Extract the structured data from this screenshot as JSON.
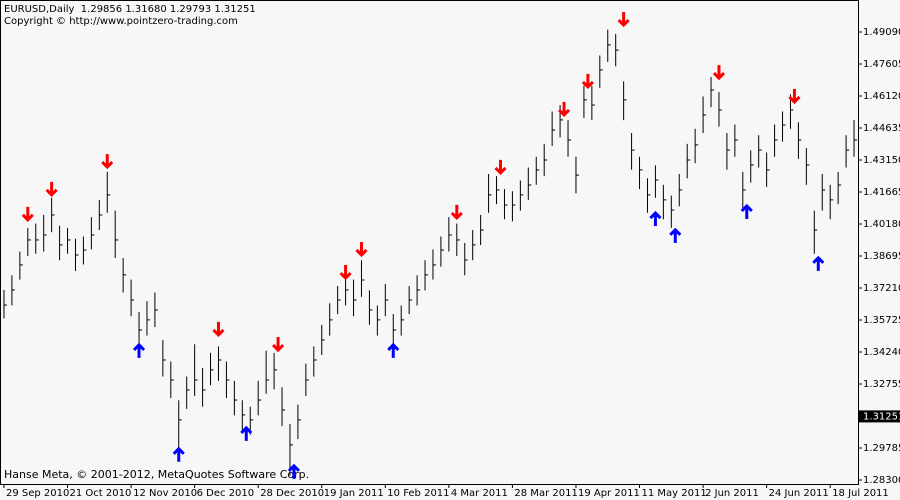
{
  "chart_data": {
    "type": "ohlc",
    "title": "EURUSD,Daily  1.29856 1.31680 1.29793 1.31251",
    "subtitle": "Copyright © http://www.pointzero-trading.com",
    "footer": "Hanse Meta, © 2001-2012, MetaQuotes Software Corp.",
    "bar_color": "#000000",
    "last_price": 1.31251,
    "x": [
      0,
      2,
      4,
      6,
      8,
      10,
      12,
      14,
      16,
      18,
      20,
      22,
      24,
      26,
      28,
      30,
      32,
      34,
      36,
      38,
      40,
      42,
      44,
      46,
      48,
      50,
      52,
      54,
      56,
      58,
      60,
      62,
      64,
      66,
      68,
      70,
      72,
      74,
      76,
      78,
      80,
      82,
      84,
      86,
      88,
      90,
      92,
      94,
      96,
      98,
      100,
      102,
      104,
      106,
      108,
      110,
      112,
      114,
      116,
      118,
      120,
      122,
      124,
      126,
      128,
      130,
      132,
      134,
      136,
      138,
      140,
      142,
      144,
      146,
      148,
      150,
      152,
      154,
      156,
      158,
      160,
      162,
      164,
      166,
      168,
      170,
      172,
      174,
      176,
      178,
      180,
      182,
      184,
      186,
      188,
      190,
      192,
      194,
      196,
      198,
      200,
      202,
      204,
      206,
      208,
      210,
      212,
      214
    ],
    "high": [
      1.3712,
      1.378,
      1.389,
      1.4,
      1.402,
      1.406,
      1.414,
      1.401,
      1.4,
      1.395,
      1.396,
      1.405,
      1.413,
      1.426,
      1.408,
      1.386,
      1.376,
      1.361,
      1.366,
      1.37,
      1.348,
      1.338,
      1.32,
      1.331,
      1.346,
      1.335,
      1.342,
      1.345,
      1.338,
      1.329,
      1.32,
      1.317,
      1.329,
      1.343,
      1.342,
      1.326,
      1.309,
      1.318,
      1.337,
      1.345,
      1.355,
      1.365,
      1.373,
      1.378,
      1.376,
      1.385,
      1.371,
      1.364,
      1.374,
      1.36,
      1.364,
      1.373,
      1.378,
      1.385,
      1.39,
      1.396,
      1.405,
      1.402,
      1.393,
      1.399,
      1.406,
      1.425,
      1.424,
      1.418,
      1.417,
      1.422,
      1.428,
      1.433,
      1.439,
      1.454,
      1.457,
      1.45,
      1.433,
      1.466,
      1.466,
      1.48,
      1.492,
      1.49,
      1.468,
      1.444,
      1.433,
      1.423,
      1.429,
      1.42,
      1.415,
      1.425,
      1.439,
      1.446,
      1.461,
      1.47,
      1.463,
      1.444,
      1.448,
      1.426,
      1.436,
      1.443,
      1.435,
      1.448,
      1.454,
      1.462,
      1.449,
      1.437,
      1.408,
      1.425,
      1.42,
      1.426,
      1.443,
      1.45
    ],
    "low": [
      1.358,
      1.364,
      1.376,
      1.387,
      1.388,
      1.389,
      1.398,
      1.385,
      1.388,
      1.38,
      1.383,
      1.39,
      1.399,
      1.407,
      1.386,
      1.37,
      1.359,
      1.344,
      1.35,
      1.354,
      1.331,
      1.321,
      1.298,
      1.316,
      1.322,
      1.317,
      1.327,
      1.329,
      1.321,
      1.313,
      1.306,
      1.304,
      1.313,
      1.323,
      1.325,
      1.308,
      1.285,
      1.302,
      1.322,
      1.331,
      1.341,
      1.35,
      1.36,
      1.364,
      1.359,
      1.368,
      1.355,
      1.35,
      1.359,
      1.344,
      1.35,
      1.36,
      1.364,
      1.371,
      1.376,
      1.382,
      1.389,
      1.387,
      1.378,
      1.385,
      1.392,
      1.407,
      1.411,
      1.404,
      1.403,
      1.408,
      1.413,
      1.42,
      1.424,
      1.438,
      1.442,
      1.433,
      1.416,
      1.451,
      1.45,
      1.465,
      1.477,
      1.475,
      1.45,
      1.427,
      1.418,
      1.407,
      1.414,
      1.404,
      1.4,
      1.41,
      1.423,
      1.43,
      1.444,
      1.456,
      1.447,
      1.427,
      1.433,
      1.409,
      1.421,
      1.428,
      1.419,
      1.433,
      1.44,
      1.446,
      1.432,
      1.42,
      1.388,
      1.408,
      1.404,
      1.411,
      1.428,
      1.433
    ],
    "close": [
      1.3642,
      1.3712,
      1.3828,
      1.3944,
      1.3944,
      1.3967,
      1.406,
      1.3921,
      1.3944,
      1.3874,
      1.3897,
      1.3967,
      1.406,
      1.4153,
      1.3944,
      1.3782,
      1.3665,
      1.3526,
      1.3573,
      1.3619,
      1.3387,
      1.3294,
      1.3109,
      1.3248,
      1.3294,
      1.3248,
      1.3341,
      1.3387,
      1.3294,
      1.3201,
      1.3132,
      1.3109,
      1.3201,
      1.3294,
      1.3341,
      1.3155,
      1.2993,
      1.3109,
      1.3294,
      1.3387,
      1.348,
      1.3573,
      1.3665,
      1.3712,
      1.3665,
      1.3758,
      1.3619,
      1.3573,
      1.3665,
      1.3526,
      1.3573,
      1.3665,
      1.3712,
      1.3782,
      1.3828,
      1.3897,
      1.3967,
      1.3944,
      1.3851,
      1.3921,
      1.399,
      1.4153,
      1.4176,
      1.4106,
      1.4106,
      1.4153,
      1.4199,
      1.4269,
      1.4315,
      1.4454,
      1.4501,
      1.4408,
      1.4245,
      1.4594,
      1.457,
      1.4733,
      1.4849,
      1.4825,
      1.4594,
      1.4361,
      1.4269,
      1.4153,
      1.4222,
      1.413,
      1.4083,
      1.4176,
      1.4315,
      1.4385,
      1.4524,
      1.464,
      1.4547,
      1.4361,
      1.4408,
      1.4176,
      1.4292,
      1.4361,
      1.4269,
      1.4408,
      1.4477,
      1.4547,
      1.4408,
      1.4292,
      1.399,
      1.4176,
      1.413,
      1.4199,
      1.4361,
      1.4408
    ],
    "down_fractals": {
      "color": "#ff0000",
      "x": [
        6,
        12,
        26,
        54,
        69,
        86,
        90,
        114,
        125,
        141,
        147,
        156,
        180,
        199
      ],
      "values": [
        1.4014,
        1.413,
        1.4259,
        1.348,
        1.341,
        1.3744,
        1.3851,
        1.4023,
        1.4232,
        1.4501,
        1.4631,
        1.4918,
        1.4672,
        1.4561
      ]
    },
    "up_fractals": {
      "color": "#0000ff",
      "x": [
        34,
        44,
        61,
        73,
        98,
        164,
        169,
        187,
        205
      ],
      "values": [
        1.348,
        1.2998,
        1.3095,
        1.2919,
        1.348,
        1.4092,
        1.4014,
        1.4125,
        1.3884
      ]
    },
    "xlim": [
      -1,
      215
    ],
    "ylim": [
      1.28114,
      1.50575
    ],
    "xticks": [
      {
        "value": 0,
        "label": "29 Sep 2010"
      },
      {
        "value": 16,
        "label": "21 Oct 2010"
      },
      {
        "value": 32,
        "label": "12 Nov 2010"
      },
      {
        "value": 48,
        "label": "6 Dec 2010"
      },
      {
        "value": 64,
        "label": "28 Dec 2010"
      },
      {
        "value": 80,
        "label": "19 Jan 2011"
      },
      {
        "value": 96,
        "label": "10 Feb 2011"
      },
      {
        "value": 112,
        "label": "4 Mar 2011"
      },
      {
        "value": 128,
        "label": "28 Mar 2011"
      },
      {
        "value": 144,
        "label": "19 Apr 2011"
      },
      {
        "value": 160,
        "label": "11 May 2011"
      },
      {
        "value": 176,
        "label": "2 Jun 2011"
      },
      {
        "value": 192,
        "label": "24 Jun 2011"
      },
      {
        "value": 208,
        "label": "18 Jul 2011"
      }
    ],
    "yticks": [
      {
        "value": 1.4909,
        "label": "1.49090"
      },
      1.47605,
      {
        "value": 1.4612,
        "label": "1.46120"
      },
      1.44635,
      {
        "value": 1.4315,
        "label": "1.43150"
      },
      1.41665,
      {
        "value": 1.4018,
        "label": "1.40180"
      },
      1.38695,
      {
        "value": 1.3721,
        "label": "1.37210"
      },
      1.35725,
      {
        "value": 1.3424,
        "label": "1.34240"
      },
      1.32755,
      1.29785,
      {
        "value": 1.283,
        "label": "1.28300"
      }
    ]
  }
}
